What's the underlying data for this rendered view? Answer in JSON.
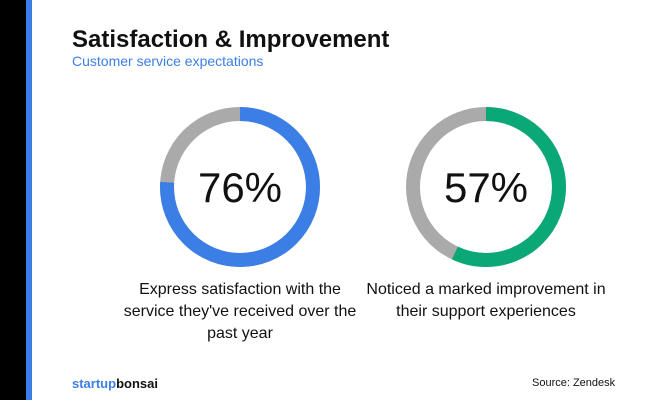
{
  "header": {
    "title": "Satisfaction & Improvement",
    "subtitle": "Customer service expectations"
  },
  "chart_data": [
    {
      "type": "pie",
      "variant": "donut",
      "value": 76,
      "label": "76%",
      "caption": "Express satisfaction with the service they've received over the past year",
      "color": "#3b7fe6",
      "rest_color": "#aaaaaa"
    },
    {
      "type": "pie",
      "variant": "donut",
      "value": 57,
      "label": "57%",
      "caption": "Noticed a marked improvement in their support experiences",
      "color": "#0aa877",
      "rest_color": "#aaaaaa"
    }
  ],
  "footer": {
    "logo_a": "startup",
    "logo_b": "bonsai",
    "source": "Source: Zendesk"
  }
}
